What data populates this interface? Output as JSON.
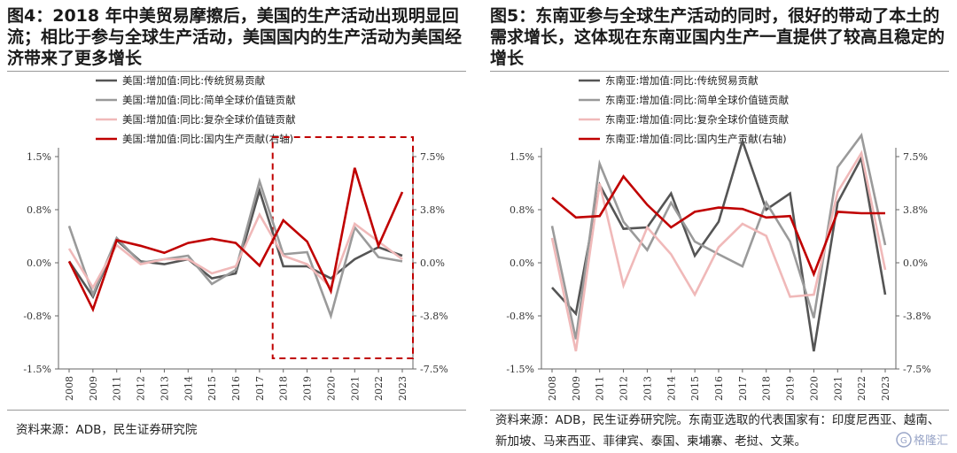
{
  "chart_data": [
    {
      "type": "line",
      "title": "图4：2018 年中美贸易摩擦后，美国的生产活动出现明显回流；相比于参与全球生产活动，美国国内的生产活动为美国经济带来了更多增长",
      "source": "资料来源：ADB，民生证券研究院",
      "x": [
        "2008",
        "2009",
        "2011",
        "2012",
        "2013",
        "2014",
        "2015",
        "2016",
        "2017",
        "2018",
        "2019",
        "2020",
        "2021",
        "2022",
        "2023"
      ],
      "y_left": {
        "ticks": [
          "1.5%",
          "0.8%",
          "0.0%",
          "-0.8%",
          "-1.5%"
        ],
        "range": [
          -1.5,
          1.5
        ]
      },
      "y_right": {
        "ticks": [
          "7.5%",
          "3.8%",
          "0.0%",
          "-3.8%",
          "-7.5%"
        ],
        "range": [
          -7.5,
          7.5
        ]
      },
      "highlight": {
        "from": "2018",
        "to": "2023",
        "style": "dashed-box",
        "color": "#c00000"
      },
      "series": [
        {
          "name": "美国:增加值:同比:传统贸易贡献",
          "color": "#555555",
          "axis": "left",
          "values": [
            0.02,
            -0.48,
            0.32,
            0.02,
            -0.02,
            0.05,
            -0.22,
            -0.15,
            1.02,
            -0.05,
            -0.05,
            -0.22,
            0.05,
            0.22,
            0.1
          ]
        },
        {
          "name": "美国:增加值:同比:简单全球价值链贡献",
          "color": "#9a9a9a",
          "axis": "left",
          "values": [
            0.52,
            -0.45,
            0.35,
            0.0,
            0.05,
            0.1,
            -0.3,
            -0.1,
            1.15,
            0.12,
            0.15,
            -0.75,
            0.5,
            0.08,
            0.02
          ]
        },
        {
          "name": "美国:增加值:同比:复杂全球价值链贡献",
          "color": "#f0b9b9",
          "axis": "left",
          "values": [
            0.2,
            -0.35,
            0.25,
            -0.02,
            0.05,
            0.05,
            -0.15,
            -0.05,
            0.68,
            0.1,
            -0.02,
            -0.35,
            0.55,
            0.3,
            0.05
          ]
        },
        {
          "name": "美国:增加值:同比:国内生产贡献(右轴)",
          "color": "#c00000",
          "axis": "right",
          "values": [
            0.1,
            -3.3,
            1.6,
            1.2,
            0.7,
            1.4,
            1.7,
            1.4,
            -0.2,
            3.0,
            1.5,
            -2.0,
            6.7,
            1.2,
            5.0
          ]
        }
      ]
    },
    {
      "type": "line",
      "title": "图5：东南亚参与全球生产活动的同时，很好的带动了本土的需求增长，这体现在东南亚国内生产一直提供了较高且稳定的增长",
      "source": "资料来源：ADB，民生证券研究院。东南亚选取的代表国家有：印度尼西亚、越南、新加坡、马来西亚、菲律宾、泰国、柬埔寨、老挝、文莱。",
      "x": [
        "2008",
        "2009",
        "2011",
        "2012",
        "2013",
        "2014",
        "2015",
        "2016",
        "2017",
        "2018",
        "2019",
        "2020",
        "2021",
        "2022",
        "2023"
      ],
      "y_left": {
        "ticks": [
          "1.5%",
          "0.8%",
          "0.0%",
          "-0.8%",
          "-1.5%"
        ],
        "range": [
          -1.5,
          1.5
        ]
      },
      "y_right": {
        "ticks": [
          "7.5%",
          "3.8%",
          "0.0%",
          "-3.8%",
          "-7.5%"
        ],
        "range": [
          -7.5,
          7.5
        ]
      },
      "series": [
        {
          "name": "东南亚:增加值:同比:传统贸易贡献",
          "color": "#555555",
          "axis": "left",
          "values": [
            -0.35,
            -0.72,
            1.1,
            0.48,
            0.5,
            0.98,
            0.1,
            0.58,
            1.72,
            0.75,
            0.98,
            -1.25,
            0.85,
            1.48,
            -0.45
          ]
        },
        {
          "name": "东南亚:增加值:同比:简单全球价值链贡献",
          "color": "#9a9a9a",
          "axis": "left",
          "values": [
            0.52,
            -1.08,
            1.4,
            0.58,
            0.18,
            0.85,
            0.3,
            0.12,
            -0.05,
            0.85,
            0.3,
            -0.78,
            1.35,
            1.8,
            0.25
          ]
        },
        {
          "name": "东南亚:增加值:同比:复杂全球价值链贡献",
          "color": "#f0b9b9",
          "axis": "left",
          "values": [
            0.35,
            -1.25,
            1.12,
            -0.32,
            0.5,
            0.12,
            -0.45,
            0.22,
            0.55,
            0.38,
            -0.48,
            -0.45,
            1.0,
            1.55,
            -0.1
          ]
        },
        {
          "name": "东南亚:增加值:同比:国内生产贡献(右轴)",
          "color": "#c00000",
          "axis": "right",
          "values": [
            4.6,
            3.2,
            3.3,
            6.1,
            4.1,
            2.5,
            3.6,
            3.9,
            3.8,
            3.2,
            3.3,
            -0.8,
            3.6,
            3.5,
            3.5
          ]
        }
      ]
    }
  ],
  "watermark": "格隆汇"
}
